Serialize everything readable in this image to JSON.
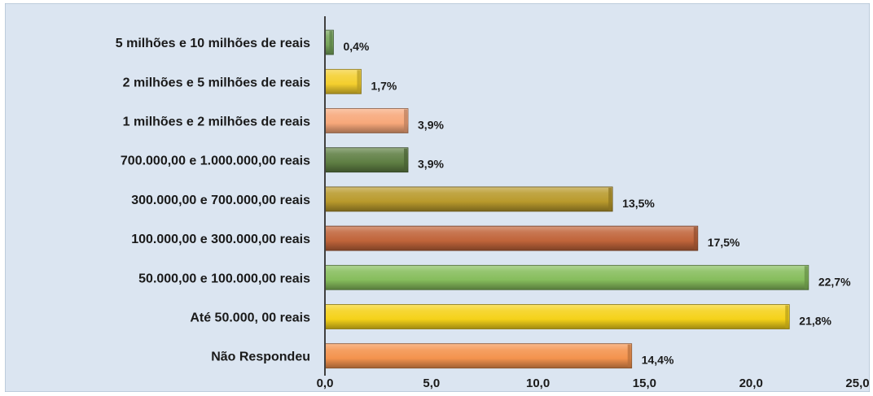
{
  "chart_data": {
    "type": "bar",
    "orientation": "horizontal",
    "categories": [
      "5 milhões e 10 milhões de reais",
      "2 milhões e 5 milhões de reais",
      "1 milhões e 2 milhões de reais",
      "700.000,00 e 1.000.000,00 reais",
      "300.000,00 e 700.000,00 reais",
      "100.000,00 e 300.000,00 reais",
      "50.000,00 e 100.000,00 reais",
      "Até 50.000, 00 reais",
      "Não Respondeu"
    ],
    "values": [
      0.4,
      1.7,
      3.9,
      3.9,
      13.5,
      17.5,
      22.7,
      21.8,
      14.4
    ],
    "data_labels": [
      "0,4%",
      "1,7%",
      "3,9%",
      "3,9%",
      "13,5%",
      "17,5%",
      "22,7%",
      "21,8%",
      "14,4%"
    ],
    "bar_colors": [
      "#77a55a",
      "#f4cf2e",
      "#f7a87a",
      "#5f7f44",
      "#b99a2c",
      "#c0643a",
      "#86bd5c",
      "#f5d21a",
      "#f4934e"
    ],
    "xlim": [
      0,
      25
    ],
    "xticks": [
      0,
      5,
      10,
      15,
      20,
      25
    ],
    "xtick_labels": [
      "0,0",
      "5,0",
      "10,0",
      "15,0",
      "20,0",
      "25,0"
    ],
    "title": "",
    "xlabel": "",
    "ylabel": "",
    "grid": false,
    "legend": "none",
    "background_color": "#dbe5f1",
    "border_color": "#9fb3c8"
  }
}
